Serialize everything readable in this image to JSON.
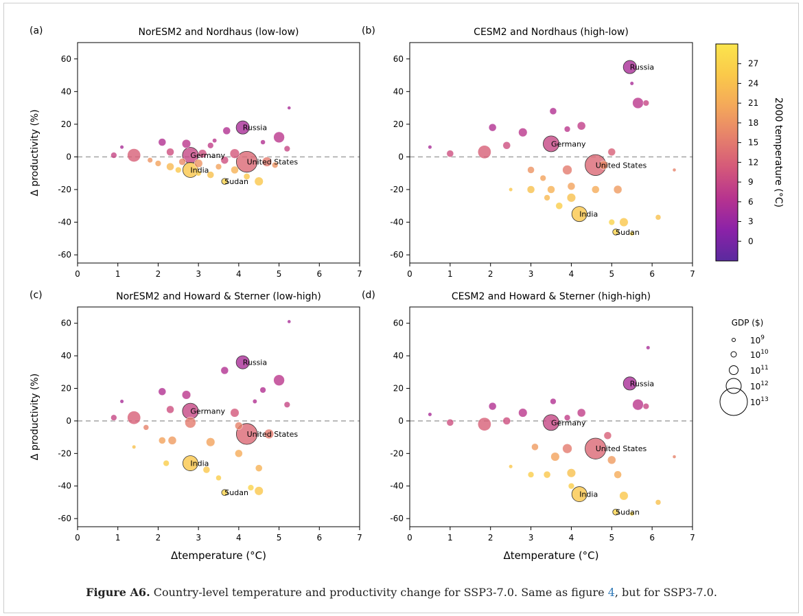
{
  "caption": {
    "label": "Figure A6.",
    "text_before": " Country-level temperature and productivity change for SSP3-7.0. Same as figure ",
    "link": "4",
    "text_after": ", but for SSP3-7.0."
  },
  "colorbar": {
    "label": "2000 temperature (°C)",
    "ticks": [
      "0",
      "3",
      "6",
      "9",
      "12",
      "15",
      "18",
      "21",
      "24",
      "27"
    ],
    "range": [
      -3,
      30
    ]
  },
  "size_legend": {
    "title": "GDP ($)",
    "entries": [
      {
        "base": "10",
        "exp": "9"
      },
      {
        "base": "10",
        "exp": "10"
      },
      {
        "base": "10",
        "exp": "11"
      },
      {
        "base": "10",
        "exp": "12"
      },
      {
        "base": "10",
        "exp": "13"
      }
    ]
  },
  "axes_text": {
    "ylabel": "Δ productivity (%)",
    "xlabel": "Δtemperature (°C)",
    "xticks": [
      "0",
      "1",
      "2",
      "3",
      "4",
      "5",
      "6",
      "7"
    ],
    "yticks": [
      "-60",
      "-40",
      "-20",
      "0",
      "20",
      "40",
      "60"
    ]
  },
  "chart_data": [
    {
      "type": "scatter",
      "panel": "(a)",
      "title": "NorESM2 and Nordhaus (low-low)",
      "xlabel": "",
      "ylabel": "Δ productivity (%)",
      "xlim": [
        0,
        7
      ],
      "ylim": [
        -65,
        70
      ],
      "reference_line": 0,
      "labeled_points": [
        {
          "label": "Russia",
          "x": 4.1,
          "y": 18,
          "temp": 5,
          "gdp_log": 12.2
        },
        {
          "label": "Germany",
          "x": 2.8,
          "y": 1,
          "temp": 9,
          "gdp_log": 12.6
        },
        {
          "label": "United States",
          "x": 4.2,
          "y": -3,
          "temp": 13,
          "gdp_log": 13.2
        },
        {
          "label": "India",
          "x": 2.8,
          "y": -8,
          "temp": 25,
          "gdp_log": 12.5
        },
        {
          "label": "Sudan",
          "x": 3.65,
          "y": -15,
          "temp": 27,
          "gdp_log": 10.5
        }
      ],
      "points": [
        {
          "x": 1.1,
          "y": 6,
          "temp": 5,
          "gdp_log": 9.5
        },
        {
          "x": 0.9,
          "y": 1,
          "temp": 9,
          "gdp_log": 10.5
        },
        {
          "x": 1.4,
          "y": 1,
          "temp": 12,
          "gdp_log": 12.2
        },
        {
          "x": 2.1,
          "y": 9,
          "temp": 6,
          "gdp_log": 11
        },
        {
          "x": 2.3,
          "y": 3,
          "temp": 10,
          "gdp_log": 11
        },
        {
          "x": 2.7,
          "y": 8,
          "temp": 7,
          "gdp_log": 11.3
        },
        {
          "x": 3.1,
          "y": 2,
          "temp": 10,
          "gdp_log": 11.2
        },
        {
          "x": 3.3,
          "y": 7,
          "temp": 8,
          "gdp_log": 10.5
        },
        {
          "x": 3.7,
          "y": 16,
          "temp": 6,
          "gdp_log": 11
        },
        {
          "x": 3.4,
          "y": 10,
          "temp": 7,
          "gdp_log": 9.8
        },
        {
          "x": 3.9,
          "y": 2,
          "temp": 11,
          "gdp_log": 11.5
        },
        {
          "x": 4.6,
          "y": 9,
          "temp": 6,
          "gdp_log": 10
        },
        {
          "x": 5.0,
          "y": 12,
          "temp": 7,
          "gdp_log": 11.8
        },
        {
          "x": 5.2,
          "y": 5,
          "temp": 9,
          "gdp_log": 10.5
        },
        {
          "x": 5.25,
          "y": 30,
          "temp": 5,
          "gdp_log": 9.3
        },
        {
          "x": 4.7,
          "y": -3,
          "temp": 15,
          "gdp_log": 11.5
        },
        {
          "x": 4.5,
          "y": -15,
          "temp": 25,
          "gdp_log": 11.3
        },
        {
          "x": 2.0,
          "y": -4,
          "temp": 20,
          "gdp_log": 10.5
        },
        {
          "x": 2.3,
          "y": -6,
          "temp": 23,
          "gdp_log": 11
        },
        {
          "x": 2.5,
          "y": -8,
          "temp": 25,
          "gdp_log": 10.5
        },
        {
          "x": 3.0,
          "y": -10,
          "temp": 26,
          "gdp_log": 10.3
        },
        {
          "x": 3.3,
          "y": -11,
          "temp": 24,
          "gdp_log": 10.8
        },
        {
          "x": 3.5,
          "y": -6,
          "temp": 20,
          "gdp_log": 10.5
        },
        {
          "x": 3.9,
          "y": -8,
          "temp": 22,
          "gdp_log": 11
        },
        {
          "x": 4.2,
          "y": -12,
          "temp": 25,
          "gdp_log": 10.6
        },
        {
          "x": 1.8,
          "y": -2,
          "temp": 18,
          "gdp_log": 10.2
        },
        {
          "x": 2.6,
          "y": -3,
          "temp": 17,
          "gdp_log": 10.8
        },
        {
          "x": 3.0,
          "y": -4,
          "temp": 18,
          "gdp_log": 11.2
        },
        {
          "x": 3.65,
          "y": -2,
          "temp": 10,
          "gdp_log": 11
        },
        {
          "x": 4.9,
          "y": -5,
          "temp": 18,
          "gdp_log": 10.5
        }
      ]
    },
    {
      "type": "scatter",
      "panel": "(b)",
      "title": "CESM2 and Nordhaus (high-low)",
      "xlabel": "",
      "ylabel": "",
      "xlim": [
        0,
        7
      ],
      "ylim": [
        -65,
        70
      ],
      "reference_line": 0,
      "labeled_points": [
        {
          "label": "Russia",
          "x": 5.45,
          "y": 55,
          "temp": 5,
          "gdp_log": 12.2
        },
        {
          "label": "Germany",
          "x": 3.5,
          "y": 8,
          "temp": 9,
          "gdp_log": 12.6
        },
        {
          "label": "United States",
          "x": 4.6,
          "y": -5,
          "temp": 13,
          "gdp_log": 13.2
        },
        {
          "label": "India",
          "x": 4.2,
          "y": -35,
          "temp": 25,
          "gdp_log": 12.5
        },
        {
          "label": "Sudan",
          "x": 5.1,
          "y": -46,
          "temp": 27,
          "gdp_log": 10.5
        }
      ],
      "points": [
        {
          "x": 0.5,
          "y": 6,
          "temp": 5,
          "gdp_log": 9.5
        },
        {
          "x": 1.0,
          "y": 2,
          "temp": 10,
          "gdp_log": 10.8
        },
        {
          "x": 1.85,
          "y": 3,
          "temp": 12,
          "gdp_log": 12.2
        },
        {
          "x": 2.05,
          "y": 18,
          "temp": 6,
          "gdp_log": 11
        },
        {
          "x": 2.4,
          "y": 7,
          "temp": 10,
          "gdp_log": 11
        },
        {
          "x": 2.8,
          "y": 15,
          "temp": 7,
          "gdp_log": 11.3
        },
        {
          "x": 3.55,
          "y": 28,
          "temp": 6,
          "gdp_log": 10.8
        },
        {
          "x": 3.9,
          "y": 17,
          "temp": 7,
          "gdp_log": 10.5
        },
        {
          "x": 4.25,
          "y": 19,
          "temp": 8,
          "gdp_log": 11.2
        },
        {
          "x": 5.5,
          "y": 45,
          "temp": 5,
          "gdp_log": 9.5
        },
        {
          "x": 5.65,
          "y": 33,
          "temp": 7,
          "gdp_log": 11.8
        },
        {
          "x": 5.85,
          "y": 33,
          "temp": 9,
          "gdp_log": 10.5
        },
        {
          "x": 6.55,
          "y": -8,
          "temp": 16,
          "gdp_log": 9.3
        },
        {
          "x": 2.5,
          "y": -20,
          "temp": 25,
          "gdp_log": 9.5
        },
        {
          "x": 3.0,
          "y": -8,
          "temp": 18,
          "gdp_log": 10.8
        },
        {
          "x": 3.3,
          "y": -13,
          "temp": 20,
          "gdp_log": 10.5
        },
        {
          "x": 3.5,
          "y": -20,
          "temp": 22,
          "gdp_log": 11
        },
        {
          "x": 3.0,
          "y": -20,
          "temp": 24,
          "gdp_log": 11
        },
        {
          "x": 3.4,
          "y": -25,
          "temp": 23,
          "gdp_log": 10.5
        },
        {
          "x": 3.7,
          "y": -30,
          "temp": 26,
          "gdp_log": 10.8
        },
        {
          "x": 4.0,
          "y": -25,
          "temp": 24,
          "gdp_log": 11.3
        },
        {
          "x": 4.6,
          "y": -20,
          "temp": 21,
          "gdp_log": 11
        },
        {
          "x": 5.15,
          "y": -20,
          "temp": 19,
          "gdp_log": 11.2
        },
        {
          "x": 5.3,
          "y": -40,
          "temp": 25,
          "gdp_log": 11.3
        },
        {
          "x": 5.0,
          "y": -40,
          "temp": 27,
          "gdp_log": 10.5
        },
        {
          "x": 5.5,
          "y": -47,
          "temp": 28,
          "gdp_log": 9.8
        },
        {
          "x": 6.15,
          "y": -37,
          "temp": 24,
          "gdp_log": 10.3
        },
        {
          "x": 3.9,
          "y": -8,
          "temp": 15,
          "gdp_log": 11.5
        },
        {
          "x": 5.0,
          "y": 3,
          "temp": 12,
          "gdp_log": 11
        },
        {
          "x": 4.8,
          "y": -5,
          "temp": 17,
          "gdp_log": 11.3
        },
        {
          "x": 4.0,
          "y": -18,
          "temp": 20,
          "gdp_log": 11
        }
      ]
    },
    {
      "type": "scatter",
      "panel": "(c)",
      "title": "NorESM2 and Howard & Sterner (low-high)",
      "xlabel": "Δtemperature (°C)",
      "ylabel": "Δ productivity (%)",
      "xlim": [
        0,
        7
      ],
      "ylim": [
        -65,
        70
      ],
      "reference_line": 0,
      "labeled_points": [
        {
          "label": "Russia",
          "x": 4.1,
          "y": 36,
          "temp": 5,
          "gdp_log": 12.2
        },
        {
          "label": "Germany",
          "x": 2.8,
          "y": 6,
          "temp": 9,
          "gdp_log": 12.6
        },
        {
          "label": "United States",
          "x": 4.2,
          "y": -8,
          "temp": 13,
          "gdp_log": 13.2
        },
        {
          "label": "India",
          "x": 2.8,
          "y": -26,
          "temp": 25,
          "gdp_log": 12.5
        },
        {
          "label": "Sudan",
          "x": 3.65,
          "y": -44,
          "temp": 27,
          "gdp_log": 10.5
        }
      ],
      "points": [
        {
          "x": 1.1,
          "y": 12,
          "temp": 5,
          "gdp_log": 9.5
        },
        {
          "x": 0.9,
          "y": 2,
          "temp": 9,
          "gdp_log": 10.5
        },
        {
          "x": 1.4,
          "y": 2,
          "temp": 12,
          "gdp_log": 12.2
        },
        {
          "x": 2.1,
          "y": 18,
          "temp": 6,
          "gdp_log": 11
        },
        {
          "x": 2.3,
          "y": 7,
          "temp": 10,
          "gdp_log": 11
        },
        {
          "x": 2.7,
          "y": 16,
          "temp": 7,
          "gdp_log": 11.3
        },
        {
          "x": 3.65,
          "y": 31,
          "temp": 6,
          "gdp_log": 11
        },
        {
          "x": 4.6,
          "y": 19,
          "temp": 6,
          "gdp_log": 10.5
        },
        {
          "x": 5.0,
          "y": 25,
          "temp": 7,
          "gdp_log": 11.8
        },
        {
          "x": 5.2,
          "y": 10,
          "temp": 9,
          "gdp_log": 10.5
        },
        {
          "x": 5.25,
          "y": 61,
          "temp": 5,
          "gdp_log": 9.3
        },
        {
          "x": 4.4,
          "y": 12,
          "temp": 6,
          "gdp_log": 9.8
        },
        {
          "x": 3.9,
          "y": 5,
          "temp": 11,
          "gdp_log": 11.3
        },
        {
          "x": 4.75,
          "y": -8,
          "temp": 15,
          "gdp_log": 11.5
        },
        {
          "x": 4.5,
          "y": -43,
          "temp": 25,
          "gdp_log": 11.3
        },
        {
          "x": 4.5,
          "y": -29,
          "temp": 22,
          "gdp_log": 10.8
        },
        {
          "x": 1.4,
          "y": -16,
          "temp": 24,
          "gdp_log": 9.5
        },
        {
          "x": 2.1,
          "y": -12,
          "temp": 20,
          "gdp_log": 10.8
        },
        {
          "x": 2.35,
          "y": -12,
          "temp": 19,
          "gdp_log": 11.2
        },
        {
          "x": 2.2,
          "y": -26,
          "temp": 26,
          "gdp_log": 10.5
        },
        {
          "x": 3.3,
          "y": -13,
          "temp": 20,
          "gdp_log": 11.3
        },
        {
          "x": 3.2,
          "y": -30,
          "temp": 25,
          "gdp_log": 10.8
        },
        {
          "x": 3.5,
          "y": -35,
          "temp": 26,
          "gdp_log": 10.3
        },
        {
          "x": 4.0,
          "y": -20,
          "temp": 21,
          "gdp_log": 11
        },
        {
          "x": 4.3,
          "y": -41,
          "temp": 27,
          "gdp_log": 10.5
        },
        {
          "x": 1.7,
          "y": -4,
          "temp": 16,
          "gdp_log": 10.3
        },
        {
          "x": 2.8,
          "y": -1,
          "temp": 15,
          "gdp_log": 11.8
        },
        {
          "x": 4.0,
          "y": -3,
          "temp": 16,
          "gdp_log": 11
        }
      ]
    },
    {
      "type": "scatter",
      "panel": "(d)",
      "title": "CESM2 and Howard & Sterner (high-high)",
      "xlabel": "Δtemperature (°C)",
      "ylabel": "",
      "xlim": [
        0,
        7
      ],
      "ylim": [
        -65,
        70
      ],
      "reference_line": 0,
      "labeled_points": [
        {
          "label": "Russia",
          "x": 5.45,
          "y": 23,
          "temp": 5,
          "gdp_log": 12.2
        },
        {
          "label": "Germany",
          "x": 3.5,
          "y": -1,
          "temp": 9,
          "gdp_log": 12.6
        },
        {
          "label": "United States",
          "x": 4.6,
          "y": -17,
          "temp": 13,
          "gdp_log": 13.2
        },
        {
          "label": "India",
          "x": 4.2,
          "y": -45,
          "temp": 25,
          "gdp_log": 12.5
        },
        {
          "label": "Sudan",
          "x": 5.1,
          "y": -56,
          "temp": 27,
          "gdp_log": 10.5
        }
      ],
      "points": [
        {
          "x": 0.5,
          "y": 4,
          "temp": 5,
          "gdp_log": 9.5
        },
        {
          "x": 1.0,
          "y": -1,
          "temp": 10,
          "gdp_log": 10.8
        },
        {
          "x": 1.85,
          "y": -2,
          "temp": 12,
          "gdp_log": 12.2
        },
        {
          "x": 2.05,
          "y": 9,
          "temp": 6,
          "gdp_log": 11
        },
        {
          "x": 2.4,
          "y": 0,
          "temp": 10,
          "gdp_log": 11
        },
        {
          "x": 2.8,
          "y": 5,
          "temp": 7,
          "gdp_log": 11.3
        },
        {
          "x": 3.55,
          "y": 12,
          "temp": 6,
          "gdp_log": 10.5
        },
        {
          "x": 3.9,
          "y": 2,
          "temp": 8,
          "gdp_log": 10.5
        },
        {
          "x": 4.25,
          "y": 5,
          "temp": 8,
          "gdp_log": 11.2
        },
        {
          "x": 5.9,
          "y": 45,
          "temp": 5,
          "gdp_log": 9.5
        },
        {
          "x": 5.65,
          "y": 10,
          "temp": 7,
          "gdp_log": 11.8
        },
        {
          "x": 5.85,
          "y": 9,
          "temp": 9,
          "gdp_log": 10.5
        },
        {
          "x": 6.55,
          "y": -22,
          "temp": 16,
          "gdp_log": 9.3
        },
        {
          "x": 3.1,
          "y": -16,
          "temp": 19,
          "gdp_log": 10.8
        },
        {
          "x": 3.6,
          "y": -22,
          "temp": 20,
          "gdp_log": 11.3
        },
        {
          "x": 3.4,
          "y": -33,
          "temp": 25,
          "gdp_log": 10.8
        },
        {
          "x": 2.5,
          "y": -28,
          "temp": 25,
          "gdp_log": 9.5
        },
        {
          "x": 3.0,
          "y": -33,
          "temp": 26,
          "gdp_log": 10.5
        },
        {
          "x": 4.0,
          "y": -32,
          "temp": 24,
          "gdp_log": 11.3
        },
        {
          "x": 5.0,
          "y": -24,
          "temp": 19,
          "gdp_log": 11.2
        },
        {
          "x": 5.15,
          "y": -33,
          "temp": 21,
          "gdp_log": 11
        },
        {
          "x": 5.3,
          "y": -46,
          "temp": 25,
          "gdp_log": 11.3
        },
        {
          "x": 5.5,
          "y": -57,
          "temp": 28,
          "gdp_log": 9.8
        },
        {
          "x": 6.15,
          "y": -50,
          "temp": 24,
          "gdp_log": 10.3
        },
        {
          "x": 3.9,
          "y": -17,
          "temp": 15,
          "gdp_log": 11.5
        },
        {
          "x": 4.9,
          "y": -9,
          "temp": 12,
          "gdp_log": 11
        },
        {
          "x": 4.0,
          "y": -40,
          "temp": 26,
          "gdp_log": 10.5
        }
      ]
    }
  ],
  "colors": {
    "palette": [
      "#5a2a9e",
      "#8b22a8",
      "#b6338f",
      "#d4587a",
      "#e6816b",
      "#f4a85a",
      "#fac94a",
      "#fbe54d"
    ],
    "zero_line": "#aaaaaa",
    "caption_link": "#2f79b8"
  }
}
